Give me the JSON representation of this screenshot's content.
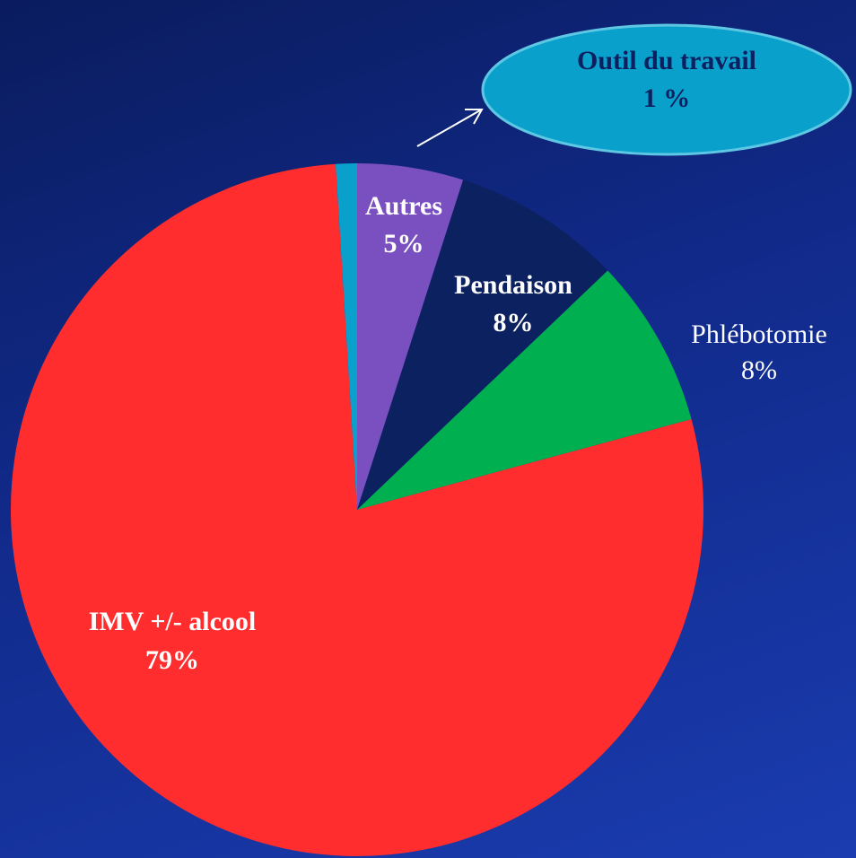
{
  "chart_data": {
    "type": "pie",
    "categories": [
      "Autres",
      "Pendaison",
      "Phlébotomie",
      "IMV +/- alcool",
      "Outil du travail"
    ],
    "values": [
      5,
      8,
      8,
      79,
      1
    ],
    "value_labels": [
      "5%",
      "8%",
      "8%",
      "79%",
      "1 %"
    ],
    "colors": [
      "#7a4fbf",
      "#0c2160",
      "#00b050",
      "#ff2d2d",
      "#0aa0cc"
    ]
  }
}
